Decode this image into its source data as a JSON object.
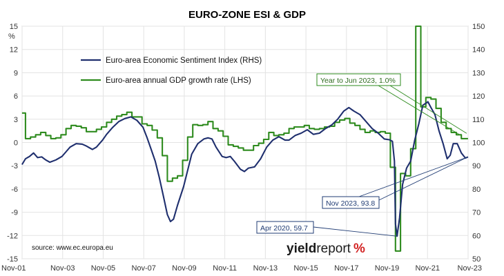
{
  "chart_data": {
    "type": "line",
    "title": "EURO-ZONE ESI & GDP",
    "y_left_unit": "%",
    "y_left_range": [
      -15,
      15
    ],
    "y_left_ticks": [
      "15",
      "12",
      "9",
      "6",
      "3",
      "0",
      "-3",
      "-6",
      "-9",
      "-12",
      "-15"
    ],
    "y_right_range": [
      50,
      150
    ],
    "y_right_ticks": [
      "150",
      "140",
      "130",
      "120",
      "110",
      "100",
      "90",
      "80",
      "70",
      "60",
      "50"
    ],
    "x_range": [
      2001.833,
      2023.833
    ],
    "x_ticks": [
      {
        "label": "Nov-01",
        "x": 2001.833
      },
      {
        "label": "Nov-03",
        "x": 2003.833
      },
      {
        "label": "Nov-05",
        "x": 2005.833
      },
      {
        "label": "Nov-07",
        "x": 2007.833
      },
      {
        "label": "Nov-09",
        "x": 2009.833
      },
      {
        "label": "Nov-11",
        "x": 2011.833
      },
      {
        "label": "Nov-13",
        "x": 2013.833
      },
      {
        "label": "Nov-15",
        "x": 2015.833
      },
      {
        "label": "Nov-17",
        "x": 2017.833
      },
      {
        "label": "Nov-19",
        "x": 2019.833
      },
      {
        "label": "Nov-21",
        "x": 2021.833
      },
      {
        "label": "Nov-23",
        "x": 2023.833
      }
    ],
    "grid": true,
    "legend_position": "top-left",
    "series": [
      {
        "name": "Euro-area Economic Sentiment Index (RHS)",
        "axis": "right",
        "color": "#1f2f6e",
        "points": [
          [
            2001.83,
            90.5
          ],
          [
            2002.0,
            93
          ],
          [
            2002.2,
            94
          ],
          [
            2002.4,
            95.5
          ],
          [
            2002.6,
            93.5
          ],
          [
            2002.8,
            93.8
          ],
          [
            2003.0,
            92.5
          ],
          [
            2003.2,
            91.5
          ],
          [
            2003.5,
            92.5
          ],
          [
            2003.8,
            94
          ],
          [
            2004.0,
            96
          ],
          [
            2004.2,
            98
          ],
          [
            2004.5,
            99.5
          ],
          [
            2004.8,
            99.3
          ],
          [
            2005.0,
            98.5
          ],
          [
            2005.3,
            97
          ],
          [
            2005.5,
            98
          ],
          [
            2005.8,
            101
          ],
          [
            2006.0,
            103.5
          ],
          [
            2006.3,
            106.5
          ],
          [
            2006.6,
            109
          ],
          [
            2006.9,
            110.3
          ],
          [
            2007.2,
            111
          ],
          [
            2007.5,
            109.5
          ],
          [
            2007.8,
            106.5
          ],
          [
            2008.0,
            102
          ],
          [
            2008.2,
            97
          ],
          [
            2008.4,
            92
          ],
          [
            2008.6,
            85
          ],
          [
            2008.8,
            77
          ],
          [
            2009.0,
            69
          ],
          [
            2009.15,
            66
          ],
          [
            2009.3,
            67
          ],
          [
            2009.5,
            73
          ],
          [
            2009.8,
            81
          ],
          [
            2010.0,
            88
          ],
          [
            2010.2,
            95
          ],
          [
            2010.5,
            99.5
          ],
          [
            2010.8,
            101.5
          ],
          [
            2011.0,
            102
          ],
          [
            2011.2,
            101.5
          ],
          [
            2011.4,
            98
          ],
          [
            2011.7,
            94
          ],
          [
            2011.9,
            93.5
          ],
          [
            2012.1,
            94
          ],
          [
            2012.3,
            92
          ],
          [
            2012.6,
            88.5
          ],
          [
            2012.8,
            87.5
          ],
          [
            2013.0,
            89
          ],
          [
            2013.3,
            89.5
          ],
          [
            2013.6,
            93
          ],
          [
            2013.9,
            98
          ],
          [
            2014.2,
            101
          ],
          [
            2014.5,
            102.5
          ],
          [
            2014.8,
            101
          ],
          [
            2015.0,
            101
          ],
          [
            2015.3,
            103
          ],
          [
            2015.6,
            104
          ],
          [
            2015.9,
            105.5
          ],
          [
            2016.2,
            103.5
          ],
          [
            2016.5,
            104
          ],
          [
            2016.8,
            106
          ],
          [
            2017.1,
            107.5
          ],
          [
            2017.4,
            110
          ],
          [
            2017.7,
            113.5
          ],
          [
            2017.95,
            115
          ],
          [
            2018.2,
            113.5
          ],
          [
            2018.5,
            112
          ],
          [
            2018.8,
            109
          ],
          [
            2019.1,
            106
          ],
          [
            2019.4,
            104
          ],
          [
            2019.7,
            101.5
          ],
          [
            2019.95,
            101.2
          ],
          [
            2020.1,
            100.5
          ],
          [
            2020.2,
            92
          ],
          [
            2020.25,
            65
          ],
          [
            2020.33,
            59.7
          ],
          [
            2020.45,
            67.5
          ],
          [
            2020.6,
            82
          ],
          [
            2020.8,
            89
          ],
          [
            2021.0,
            92
          ],
          [
            2021.2,
            101
          ],
          [
            2021.4,
            108
          ],
          [
            2021.6,
            116
          ],
          [
            2021.85,
            117.5
          ],
          [
            2022.0,
            115
          ],
          [
            2022.2,
            112
          ],
          [
            2022.4,
            105
          ],
          [
            2022.6,
            99.5
          ],
          [
            2022.8,
            93
          ],
          [
            2022.95,
            94.5
          ],
          [
            2023.1,
            99.5
          ],
          [
            2023.3,
            99.5
          ],
          [
            2023.5,
            95.5
          ],
          [
            2023.7,
            93.3
          ],
          [
            2023.83,
            93.8
          ]
        ]
      },
      {
        "name": "Euro-area annual GDP growth rate (LHS)",
        "axis": "left",
        "type": "step",
        "color": "#2e8b1e",
        "points": [
          [
            2001.83,
            3.8
          ],
          [
            2002.0,
            0.5
          ],
          [
            2002.25,
            0.7
          ],
          [
            2002.5,
            1.0
          ],
          [
            2002.75,
            1.3
          ],
          [
            2003.0,
            0.9
          ],
          [
            2003.25,
            0.5
          ],
          [
            2003.5,
            0.6
          ],
          [
            2003.75,
            1.0
          ],
          [
            2004.0,
            1.8
          ],
          [
            2004.25,
            2.2
          ],
          [
            2004.5,
            2.1
          ],
          [
            2004.75,
            1.9
          ],
          [
            2005.0,
            1.4
          ],
          [
            2005.25,
            1.4
          ],
          [
            2005.5,
            1.7
          ],
          [
            2005.75,
            2.0
          ],
          [
            2006.0,
            2.6
          ],
          [
            2006.25,
            3.0
          ],
          [
            2006.5,
            3.4
          ],
          [
            2006.75,
            3.6
          ],
          [
            2007.0,
            3.9
          ],
          [
            2007.25,
            3.3
          ],
          [
            2007.5,
            3.3
          ],
          [
            2007.75,
            2.4
          ],
          [
            2008.0,
            2.2
          ],
          [
            2008.25,
            1.6
          ],
          [
            2008.5,
            0.6
          ],
          [
            2008.75,
            -1.7
          ],
          [
            2009.0,
            -5.0
          ],
          [
            2009.25,
            -4.6
          ],
          [
            2009.5,
            -4.3
          ],
          [
            2009.75,
            -2.3
          ],
          [
            2010.0,
            0.7
          ],
          [
            2010.25,
            2.3
          ],
          [
            2010.5,
            2.2
          ],
          [
            2010.75,
            2.3
          ],
          [
            2011.0,
            2.7
          ],
          [
            2011.25,
            1.8
          ],
          [
            2011.5,
            1.5
          ],
          [
            2011.75,
            0.8
          ],
          [
            2012.0,
            -0.3
          ],
          [
            2012.25,
            -0.5
          ],
          [
            2012.5,
            -0.7
          ],
          [
            2012.75,
            -1.0
          ],
          [
            2013.0,
            -1.0
          ],
          [
            2013.25,
            -0.4
          ],
          [
            2013.5,
            -0.1
          ],
          [
            2013.75,
            0.4
          ],
          [
            2014.0,
            1.3
          ],
          [
            2014.25,
            0.9
          ],
          [
            2014.5,
            1.0
          ],
          [
            2014.75,
            1.2
          ],
          [
            2015.0,
            1.8
          ],
          [
            2015.25,
            2.0
          ],
          [
            2015.5,
            2.0
          ],
          [
            2015.75,
            2.2
          ],
          [
            2016.0,
            1.8
          ],
          [
            2016.25,
            1.7
          ],
          [
            2016.5,
            1.8
          ],
          [
            2016.75,
            2.0
          ],
          [
            2017.0,
            2.1
          ],
          [
            2017.25,
            2.6
          ],
          [
            2017.5,
            2.9
          ],
          [
            2017.75,
            3.1
          ],
          [
            2018.0,
            2.5
          ],
          [
            2018.25,
            2.2
          ],
          [
            2018.5,
            1.7
          ],
          [
            2018.75,
            1.3
          ],
          [
            2019.0,
            1.5
          ],
          [
            2019.25,
            1.3
          ],
          [
            2019.5,
            1.4
          ],
          [
            2019.75,
            1.2
          ],
          [
            2020.0,
            -3.2
          ],
          [
            2020.25,
            -14.0
          ],
          [
            2020.5,
            -4.0
          ],
          [
            2020.75,
            -4.3
          ],
          [
            2021.0,
            -0.8
          ],
          [
            2021.25,
            15.0
          ],
          [
            2021.5,
            4.6
          ],
          [
            2021.75,
            5.8
          ],
          [
            2022.0,
            5.6
          ],
          [
            2022.25,
            4.4
          ],
          [
            2022.5,
            2.6
          ],
          [
            2022.75,
            1.8
          ],
          [
            2023.0,
            1.3
          ],
          [
            2023.25,
            1.0
          ],
          [
            2023.5,
            0.5
          ],
          [
            2023.75,
            0.5
          ]
        ]
      }
    ],
    "annotations": [
      {
        "text": "Year to Jun 2023, 1.0%",
        "target_x": 2023.42,
        "target_y": 1.0,
        "axis": "left"
      },
      {
        "text": "Nov 2023, 93.8",
        "target_x": 2023.83,
        "target_y": 93.8,
        "axis": "right"
      },
      {
        "text": "Apr 2020, 59.7",
        "target_x": 2020.33,
        "target_y": 59.7,
        "axis": "right"
      }
    ],
    "source_note": "source: www.ec.europa.eu"
  },
  "logo": {
    "part1": "yield",
    "part2": "report",
    "part3": "%"
  }
}
